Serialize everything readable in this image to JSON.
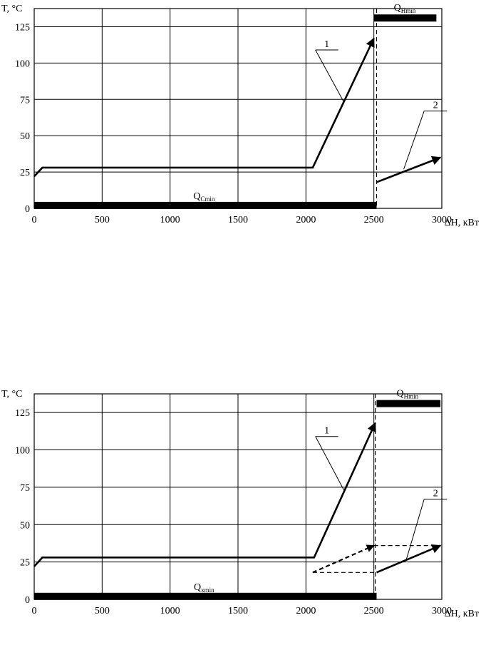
{
  "chart_data": [
    {
      "type": "line",
      "ylabel": "T, °C",
      "xlabel": "ΔH, кВт",
      "xlim": [
        0,
        3000
      ],
      "ylim": [
        0,
        137.5
      ],
      "x_ticks": [
        "0",
        "500",
        "1000",
        "1500",
        "2000",
        "2500",
        "3000"
      ],
      "y_ticks": [
        "0",
        "25",
        "50",
        "75",
        "100",
        "125"
      ],
      "grid": true,
      "hot_utility": {
        "label": "Q",
        "sub": "Hmin",
        "x": [
          2500,
          2960
        ],
        "y": 131
      },
      "cold_utility": {
        "label": "Q",
        "sub": "Cmin",
        "x": [
          0,
          2520
        ],
        "y": 2
      },
      "pinch_x": 2520,
      "series": [
        {
          "name": "1",
          "style": "solid",
          "arrow_at_start": true,
          "x": [
            2500,
            2050,
            60,
            0
          ],
          "y": [
            117,
            28,
            28,
            22
          ]
        },
        {
          "name": "2",
          "style": "solid",
          "arrow_at_end": true,
          "x": [
            2520,
            2990
          ],
          "y": [
            18,
            35
          ]
        }
      ],
      "labels": [
        {
          "text": "1",
          "x": 2070,
          "y": 109,
          "leader_to": [
            2280,
            73
          ]
        },
        {
          "text": "2",
          "x": 2870,
          "y": 67,
          "leader_to": [
            2720,
            27
          ]
        }
      ]
    },
    {
      "type": "line",
      "ylabel": "T, °C",
      "xlabel": "ΔH, кВт",
      "xlim": [
        0,
        3000
      ],
      "ylim": [
        0,
        137.5
      ],
      "x_ticks": [
        "0",
        "500",
        "1000",
        "1500",
        "2000",
        "2500",
        "3000"
      ],
      "y_ticks": [
        "0",
        "25",
        "50",
        "75",
        "100",
        "125"
      ],
      "grid": true,
      "hot_utility": {
        "label": "Q",
        "sub": "Hmin",
        "x": [
          2520,
          2990
        ],
        "y": 131
      },
      "cold_utility": {
        "label": "Q",
        "sub": "xmin",
        "x": [
          0,
          2520
        ],
        "y": 2
      },
      "pinch_x": 2510,
      "series": [
        {
          "name": "1",
          "style": "solid",
          "arrow_at_start": true,
          "x": [
            2510,
            2060,
            60,
            0
          ],
          "y": [
            118,
            28,
            28,
            22
          ]
        },
        {
          "name": "2",
          "style": "solid",
          "arrow_at_end": true,
          "x": [
            2520,
            2990
          ],
          "y": [
            18,
            36
          ]
        },
        {
          "name": "",
          "style": "dashed",
          "arrow_at_end": true,
          "x": [
            2050,
            2500
          ],
          "y": [
            18,
            36
          ]
        },
        {
          "name": "",
          "style": "dashed",
          "x": [
            2500,
            2990
          ],
          "y": [
            36,
            36
          ]
        },
        {
          "name": "",
          "style": "dashed",
          "x": [
            2050,
            2520
          ],
          "y": [
            18,
            18
          ]
        }
      ],
      "labels": [
        {
          "text": "1",
          "x": 2070,
          "y": 109,
          "leader_to": [
            2280,
            73
          ]
        },
        {
          "text": "2",
          "x": 2870,
          "y": 67,
          "leader_to": [
            2740,
            27
          ]
        }
      ]
    }
  ]
}
